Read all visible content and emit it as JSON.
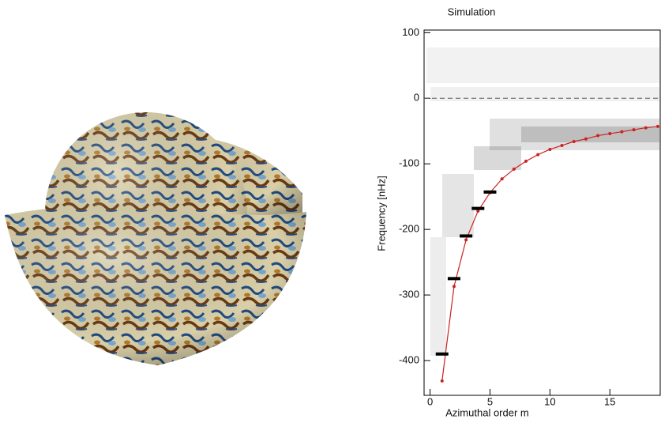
{
  "chart_data": {
    "type": "line",
    "title": "Simulation",
    "xlabel": "Azimuthal order m",
    "ylabel": "Frequency [nHz]",
    "xlim": [
      -0.5,
      19.2
    ],
    "ylim": [
      -453,
      104
    ],
    "xticks": [
      0,
      5,
      10,
      15
    ],
    "yticks": [
      100,
      0,
      -100,
      -200,
      -300,
      -400
    ],
    "reference_line": 0,
    "series": [
      {
        "style": "line-dots",
        "color": "#cc2222",
        "x": [
          1,
          2,
          3,
          4,
          5,
          6,
          7,
          8,
          9,
          10,
          11,
          12,
          13,
          14,
          15,
          16,
          17,
          18,
          19
        ],
        "values": [
          -431,
          -287,
          -216,
          -172,
          -144,
          -123,
          -108,
          -96,
          -86,
          -78,
          -72,
          -66,
          -62,
          -57,
          -54,
          -51,
          -48,
          -45,
          -43
        ]
      },
      {
        "style": "dash",
        "color": "#000000",
        "x": [
          1,
          2,
          3,
          4,
          5
        ],
        "values": [
          -390,
          -275,
          -210,
          -168,
          -143
        ]
      }
    ]
  }
}
